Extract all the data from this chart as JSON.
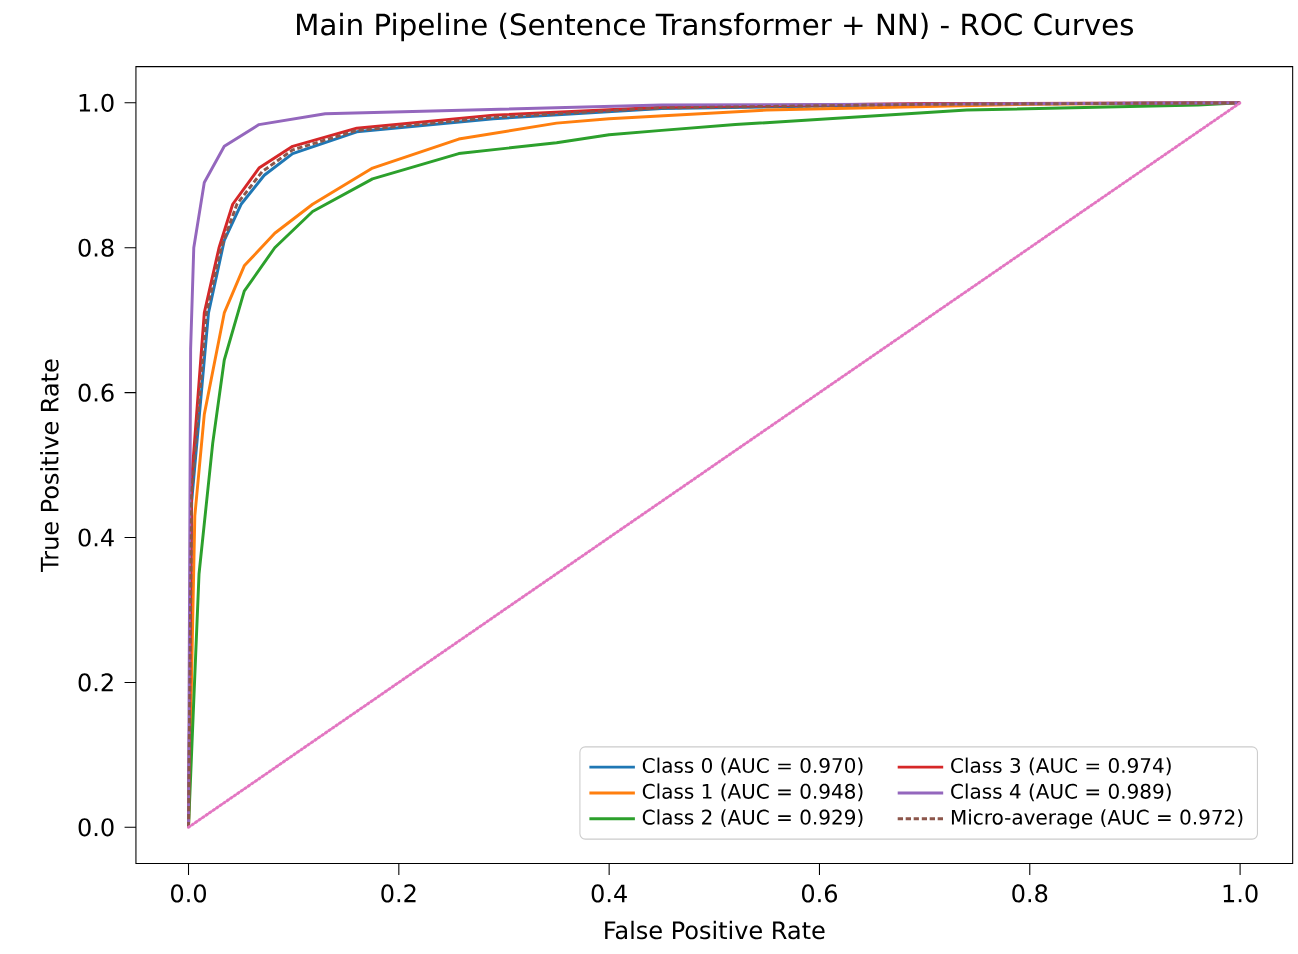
{
  "chart_data": {
    "type": "line",
    "title": "Main Pipeline (Sentence Transformer + NN) - ROC Curves",
    "xlabel": "False Positive Rate",
    "ylabel": "True Positive Rate",
    "xlim": [
      -0.05,
      1.05
    ],
    "ylim": [
      -0.05,
      1.05
    ],
    "xticks": [
      {
        "value": 0,
        "label": "0.0"
      },
      {
        "value": 0.2,
        "label": "0.2"
      },
      {
        "value": 0.4,
        "label": "0.4"
      },
      {
        "value": 0.6,
        "label": "0.6"
      },
      {
        "value": 0.8,
        "label": "0.8"
      },
      {
        "value": 1,
        "label": "1.0"
      }
    ],
    "yticks": [
      {
        "value": 0,
        "label": "0.0"
      },
      {
        "value": 0.2,
        "label": "0.2"
      },
      {
        "value": 0.4,
        "label": "0.4"
      },
      {
        "value": 0.6,
        "label": "0.6"
      },
      {
        "value": 0.8,
        "label": "0.8"
      },
      {
        "value": 1,
        "label": "1.0"
      }
    ],
    "grid": false,
    "legend": "bottom right",
    "marker": "none",
    "series": [
      {
        "name": "Class 0 (AUC = 0.970)",
        "color": "#1f77b4",
        "line_style": "solid",
        "x": [
          0,
          0.003,
          0.019,
          0.034,
          0.05,
          0.072,
          0.099,
          0.16,
          0.29,
          0.45,
          0.7,
          1
        ],
        "values": [
          0,
          0.45,
          0.71,
          0.81,
          0.86,
          0.9,
          0.93,
          0.96,
          0.978,
          0.992,
          0.998,
          1
        ]
      },
      {
        "name": "Class 1 (AUC = 0.948)",
        "color": "#ff7f0e",
        "line_style": "solid",
        "x": [
          0,
          0.006,
          0.015,
          0.034,
          0.053,
          0.082,
          0.118,
          0.175,
          0.257,
          0.35,
          0.4,
          0.55,
          0.8,
          1
        ],
        "values": [
          0,
          0.43,
          0.57,
          0.71,
          0.775,
          0.82,
          0.86,
          0.91,
          0.95,
          0.972,
          0.978,
          0.99,
          0.998,
          1
        ]
      },
      {
        "name": "Class 2 (AUC = 0.929)",
        "color": "#2ca02c",
        "line_style": "solid",
        "x": [
          0,
          0.01,
          0.023,
          0.034,
          0.053,
          0.082,
          0.118,
          0.175,
          0.257,
          0.35,
          0.4,
          0.45,
          0.52,
          0.74,
          0.96,
          1
        ],
        "values": [
          0,
          0.35,
          0.53,
          0.645,
          0.74,
          0.8,
          0.85,
          0.895,
          0.93,
          0.945,
          0.956,
          0.962,
          0.97,
          0.99,
          0.997,
          1
        ]
      },
      {
        "name": "Class 3 (AUC = 0.974)",
        "color": "#d62728",
        "line_style": "solid",
        "x": [
          0,
          0.003,
          0.015,
          0.029,
          0.042,
          0.067,
          0.099,
          0.16,
          0.29,
          0.45,
          0.7,
          1
        ],
        "values": [
          0,
          0.48,
          0.71,
          0.8,
          0.86,
          0.91,
          0.94,
          0.965,
          0.983,
          0.994,
          0.999,
          1
        ]
      },
      {
        "name": "Class 4 (AUC = 0.989)",
        "color": "#9467bd",
        "line_style": "solid",
        "x": [
          0,
          0.002,
          0.005,
          0.015,
          0.034,
          0.067,
          0.13,
          0.45,
          1
        ],
        "values": [
          0,
          0.66,
          0.8,
          0.89,
          0.94,
          0.97,
          0.985,
          0.997,
          1
        ]
      },
      {
        "name": "Micro-average (AUC = 0.972)",
        "color": "#8c564b",
        "line_style": "dashed",
        "x": [
          0,
          0.003,
          0.017,
          0.031,
          0.046,
          0.07,
          0.099,
          0.16,
          0.29,
          0.45,
          0.7,
          1
        ],
        "values": [
          0,
          0.46,
          0.71,
          0.8,
          0.86,
          0.905,
          0.935,
          0.962,
          0.98,
          0.993,
          0.998,
          1
        ]
      },
      {
        "color": "#e377c2",
        "line_style": "dotted",
        "x": [
          0,
          1
        ],
        "values": [
          0,
          1
        ]
      }
    ]
  }
}
